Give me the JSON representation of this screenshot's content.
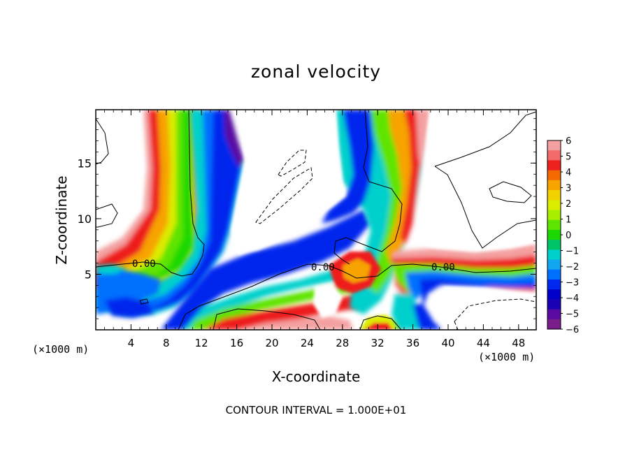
{
  "chart_data": {
    "type": "heatmap",
    "title": "zonal velocity",
    "xlabel": "X-coordinate",
    "ylabel": "Z-coordinate",
    "x_unit": "(×1000 m)",
    "footer": "CONTOUR INTERVAL = 1.000E+01",
    "xlim": [
      0,
      50
    ],
    "ylim": [
      0,
      19.8
    ],
    "x_ticks": [
      "4",
      "8",
      "12",
      "16",
      "20",
      "24",
      "28",
      "32",
      "36",
      "40",
      "44",
      "48"
    ],
    "y_ticks": [
      "5",
      "10",
      "15"
    ],
    "colorbar": {
      "min": -6,
      "max": 6,
      "labels": [
        "6",
        "5",
        "4",
        "3",
        "2",
        "1",
        "0",
        "-1",
        "-2",
        "-3",
        "-4",
        "-5",
        "-6"
      ],
      "colors": [
        "#f4a0a0",
        "#f36a6a",
        "#ee1f1f",
        "#f56a00",
        "#f7a300",
        "#f2d200",
        "#dcec00",
        "#a8ee00",
        "#5ee400",
        "#1cd800",
        "#00c468",
        "#00d0cc",
        "#11a6ee",
        "#0070ff",
        "#0028ee",
        "#0000c8",
        "#1c00b4",
        "#5a0aa0",
        "#7a1e8c"
      ]
    },
    "contour_labels": [
      "0.00",
      "0.00",
      "0.00"
    ],
    "contour_interval": 10
  }
}
